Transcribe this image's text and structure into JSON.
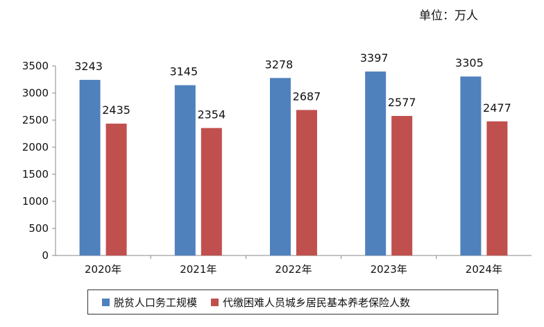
{
  "unit": "单位：万人",
  "chart_data": {
    "type": "bar",
    "categories": [
      "2020年",
      "2021年",
      "2022年",
      "2023年",
      "2024年"
    ],
    "series": [
      {
        "name": "脱贫人口务工规模",
        "values": [
          3243,
          3145,
          3278,
          3397,
          3305
        ],
        "color": "#4f81bd"
      },
      {
        "name": "代缴困难人员城乡居民基本养老保险人数",
        "values": [
          2435,
          2354,
          2687,
          2577,
          2477
        ],
        "color": "#c0504d"
      }
    ],
    "yticks": [
      0,
      500,
      1000,
      1500,
      2000,
      2500,
      3000,
      3500
    ],
    "ylim": [
      0,
      3500
    ],
    "grid": false,
    "legend": "bottom"
  }
}
